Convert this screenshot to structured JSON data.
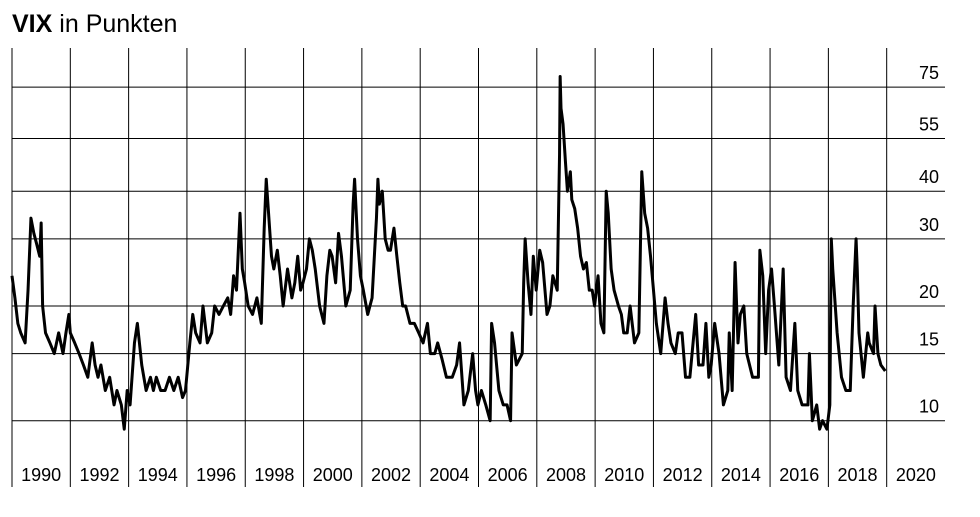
{
  "chart_data": {
    "type": "line",
    "title_bold": "VIX",
    "title": "in Punkten",
    "log_y": true,
    "grid": true,
    "color": "#000000",
    "xlim": [
      1990,
      2022
    ],
    "xticks": [
      1990,
      1992,
      1994,
      1996,
      1998,
      2000,
      2002,
      2004,
      2006,
      2008,
      2010,
      2012,
      2014,
      2016,
      2018,
      2020
    ],
    "ylim": [
      6.7,
      95
    ],
    "yticks": [
      10,
      15,
      20,
      30,
      40,
      55,
      75
    ],
    "x": [
      1990.0,
      1990.1,
      1990.2,
      1990.3,
      1990.45,
      1990.55,
      1990.65,
      1990.75,
      1990.85,
      1990.95,
      1991.0,
      1991.05,
      1991.15,
      1991.3,
      1991.45,
      1991.6,
      1991.75,
      1991.85,
      1991.95,
      1992.0,
      1992.15,
      1992.3,
      1992.45,
      1992.6,
      1992.75,
      1992.85,
      1992.95,
      1993.05,
      1993.2,
      1993.35,
      1993.5,
      1993.6,
      1993.75,
      1993.85,
      1993.95,
      1994.05,
      1994.2,
      1994.3,
      1994.45,
      1994.6,
      1994.75,
      1994.85,
      1994.95,
      1995.1,
      1995.25,
      1995.4,
      1995.55,
      1995.7,
      1995.85,
      1995.95,
      1996.1,
      1996.2,
      1996.3,
      1996.45,
      1996.55,
      1996.7,
      1996.85,
      1996.95,
      1997.1,
      1997.25,
      1997.4,
      1997.5,
      1997.6,
      1997.7,
      1997.82,
      1997.9,
      1997.98,
      1998.1,
      1998.25,
      1998.4,
      1998.55,
      1998.65,
      1998.72,
      1998.8,
      1998.9,
      1998.98,
      1999.1,
      1999.2,
      1999.3,
      1999.45,
      1999.6,
      1999.7,
      1999.8,
      1999.9,
      1999.98,
      2000.1,
      2000.2,
      2000.3,
      2000.4,
      2000.55,
      2000.7,
      2000.8,
      2000.9,
      2000.98,
      2001.1,
      2001.2,
      2001.3,
      2001.45,
      2001.6,
      2001.7,
      2001.75,
      2001.85,
      2001.95,
      2002.05,
      2002.2,
      2002.35,
      2002.5,
      2002.55,
      2002.6,
      2002.7,
      2002.8,
      2002.9,
      2002.98,
      2003.1,
      2003.2,
      2003.3,
      2003.4,
      2003.5,
      2003.65,
      2003.8,
      2003.95,
      2004.1,
      2004.25,
      2004.35,
      2004.5,
      2004.6,
      2004.75,
      2004.9,
      2004.98,
      2005.1,
      2005.25,
      2005.35,
      2005.5,
      2005.65,
      2005.8,
      2005.9,
      2005.98,
      2006.1,
      2006.25,
      2006.4,
      2006.45,
      2006.55,
      2006.7,
      2006.85,
      2006.98,
      2007.1,
      2007.15,
      2007.3,
      2007.5,
      2007.55,
      2007.6,
      2007.7,
      2007.8,
      2007.88,
      2007.98,
      2008.1,
      2008.2,
      2008.35,
      2008.45,
      2008.55,
      2008.7,
      2008.78,
      2008.8,
      2008.83,
      2008.9,
      2008.98,
      2009.05,
      2009.15,
      2009.2,
      2009.3,
      2009.4,
      2009.5,
      2009.6,
      2009.7,
      2009.8,
      2009.9,
      2009.98,
      2010.1,
      2010.2,
      2010.3,
      2010.38,
      2010.45,
      2010.55,
      2010.65,
      2010.8,
      2010.9,
      2010.98,
      2011.1,
      2011.2,
      2011.35,
      2011.5,
      2011.6,
      2011.7,
      2011.8,
      2011.9,
      2011.98,
      2012.1,
      2012.25,
      2012.4,
      2012.5,
      2012.6,
      2012.75,
      2012.85,
      2012.98,
      2013.1,
      2013.25,
      2013.45,
      2013.55,
      2013.7,
      2013.8,
      2013.9,
      2013.98,
      2014.1,
      2014.25,
      2014.4,
      2014.55,
      2014.6,
      2014.7,
      2014.8,
      2014.9,
      2014.98,
      2015.1,
      2015.2,
      2015.4,
      2015.6,
      2015.65,
      2015.75,
      2015.85,
      2015.95,
      2016.05,
      2016.15,
      2016.3,
      2016.45,
      2016.55,
      2016.7,
      2016.85,
      2016.95,
      2017.1,
      2017.3,
      2017.35,
      2017.45,
      2017.6,
      2017.7,
      2017.8,
      2017.95,
      2018.05,
      2018.1,
      2018.15,
      2018.3,
      2018.45,
      2018.6,
      2018.75,
      2018.85,
      2018.95,
      2018.99,
      2019.05,
      2019.2,
      2019.35,
      2019.4,
      2019.55,
      2019.6,
      2019.7,
      2019.8,
      2019.95
    ],
    "values": [
      24,
      21,
      18,
      17,
      16,
      22,
      34,
      31,
      29,
      27,
      33,
      20,
      17,
      16,
      15,
      17,
      15,
      17,
      19,
      17,
      16,
      15,
      14,
      13,
      16,
      14,
      13,
      14,
      12,
      13,
      11,
      12,
      11,
      9.5,
      12,
      11,
      16,
      18,
      14,
      12,
      13,
      12,
      13,
      12,
      12,
      13,
      12,
      13,
      11.5,
      12,
      16,
      19,
      17,
      16,
      20,
      16,
      17,
      20,
      19,
      20,
      21,
      19,
      24,
      22,
      35,
      25,
      23,
      20,
      19,
      21,
      18,
      32,
      43,
      35,
      27,
      25,
      28,
      24,
      20,
      25,
      21,
      23,
      27,
      22,
      23,
      25,
      30,
      28,
      25,
      20,
      18,
      24,
      28,
      27,
      23,
      31,
      27,
      20,
      22,
      37,
      43,
      30,
      24,
      22,
      19,
      21,
      34,
      43,
      37,
      40,
      30,
      28,
      28,
      32,
      27,
      23,
      20,
      20,
      18,
      18,
      17,
      16,
      18,
      15,
      15,
      16,
      14.5,
      13,
      13,
      13,
      14,
      16,
      11,
      12,
      15,
      12,
      11,
      12,
      11,
      10,
      18,
      16,
      12,
      11,
      11,
      10,
      17,
      14,
      15,
      23,
      30,
      23,
      19,
      27,
      22,
      28,
      26,
      19,
      20,
      24,
      22,
      50,
      80,
      66,
      60,
      48,
      40,
      45,
      38,
      36,
      32,
      27,
      25,
      26,
      22,
      22,
      20,
      24,
      18,
      17,
      40,
      35,
      25,
      22,
      20,
      19,
      17,
      17,
      20,
      16,
      17,
      45,
      35,
      32,
      27,
      23,
      18,
      15,
      21,
      18,
      16,
      15,
      17,
      17,
      13,
      13,
      19,
      14,
      14,
      18,
      13,
      14,
      18,
      15,
      11,
      12,
      17,
      12,
      26,
      16,
      19,
      20,
      15,
      13,
      13,
      28,
      24,
      15,
      22,
      25,
      20,
      14,
      25,
      13,
      12,
      18,
      12,
      11,
      11,
      15,
      10,
      11,
      9.5,
      10,
      9.5,
      11,
      30,
      25,
      17,
      13,
      12,
      12,
      20,
      30,
      25,
      17,
      13,
      17,
      16,
      15,
      20,
      15,
      14,
      13.5
    ]
  }
}
